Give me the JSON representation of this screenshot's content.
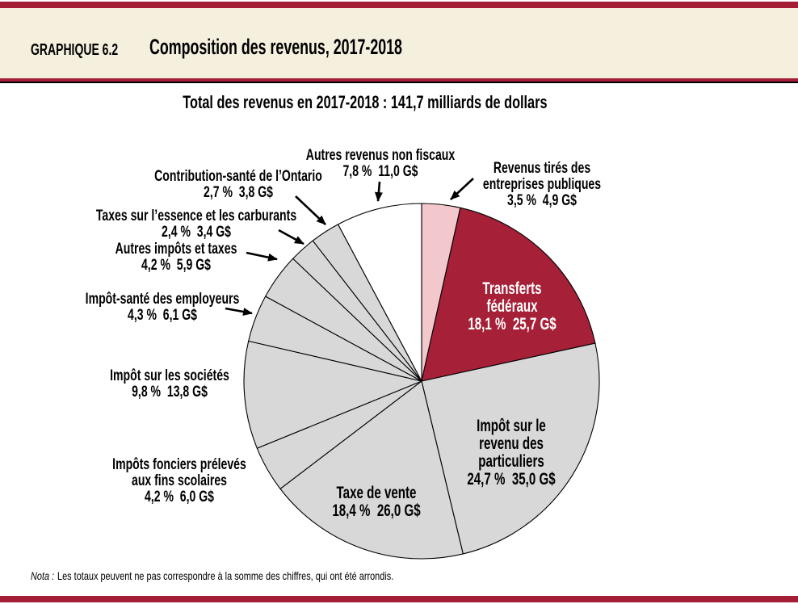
{
  "header": {
    "kicker": "GRAPHIQUE 6.2",
    "title": "Composition des revenus, 2017-2018"
  },
  "subtitle": "Total des revenus en 2017-2018 : 141,7 milliards de dollars",
  "note": {
    "prefix": "Nota :",
    "text": "Les totaux peuvent ne pas correspondre à la somme des chiffres, qui ont été arrondis."
  },
  "colors": {
    "accent_red": "#a41e36",
    "header_bg": "#f5efde",
    "slice_red": "#a62038",
    "slice_pink": "#f2c8cc",
    "slice_gray": "#d8d8d8",
    "slice_white": "#ffffff"
  },
  "chart_data": {
    "type": "pie",
    "title": "Composition des revenus, 2017-2018",
    "subtitle": "Total des revenus en 2017-2018 : 141,7 milliards de dollars",
    "total_value_gs": 141.7,
    "unit": "G$",
    "start_angle_deg": 0,
    "direction": "clockwise",
    "slices": [
      {
        "id": "entreprises",
        "label": "Revenus tirés des entreprises publiques",
        "label_lines": [
          "Revenus tirés des",
          "entreprises publiques"
        ],
        "pct": 3.5,
        "amount_gs": 4.9,
        "pct_label": "3,5 %",
        "amount_label": "4,9 G$",
        "value_line": "3,5 %  4,9 G$",
        "color_key": "slice_pink"
      },
      {
        "id": "transferts",
        "label": "Transferts fédéraux",
        "label_lines": [
          "Transferts",
          "fédéraux"
        ],
        "pct": 18.1,
        "amount_gs": 25.7,
        "pct_label": "18,1 %",
        "amount_label": "25,7 G$",
        "value_line": "18,1 %  25,7 G$",
        "color_key": "slice_red"
      },
      {
        "id": "impot-revenu",
        "label": "Impôt sur le revenu des particuliers",
        "label_lines": [
          "Impôt sur le",
          "revenu des",
          "particuliers"
        ],
        "pct": 24.7,
        "amount_gs": 35.0,
        "pct_label": "24,7 %",
        "amount_label": "35,0 G$",
        "value_line": "24,7 %  35,0 G$",
        "color_key": "slice_gray"
      },
      {
        "id": "taxe-vente",
        "label": "Taxe de vente",
        "label_lines": [
          "Taxe de vente"
        ],
        "pct": 18.4,
        "amount_gs": 26.0,
        "pct_label": "18,4 %",
        "amount_label": "26,0 G$",
        "value_line": "18,4 %  26,0 G$",
        "color_key": "slice_gray"
      },
      {
        "id": "impots-fonciers",
        "label": "Impôts fonciers prélevés aux fins scolaires",
        "label_lines": [
          "Impôts fonciers prélevés",
          "aux fins scolaires"
        ],
        "pct": 4.2,
        "amount_gs": 6.0,
        "pct_label": "4,2 %",
        "amount_label": "6,0 G$",
        "value_line": "4,2 %  6,0 G$",
        "color_key": "slice_gray"
      },
      {
        "id": "impot-societes",
        "label": "Impôt sur les sociétés",
        "label_lines": [
          "Impôt sur les sociétés"
        ],
        "pct": 9.8,
        "amount_gs": 13.8,
        "pct_label": "9,8 %",
        "amount_label": "13,8 G$",
        "value_line": "9,8 %  13,8 G$",
        "color_key": "slice_gray"
      },
      {
        "id": "impot-sante",
        "label": "Impôt-santé des employeurs",
        "label_lines": [
          "Impôt-santé des employeurs"
        ],
        "pct": 4.3,
        "amount_gs": 6.1,
        "pct_label": "4,3 %",
        "amount_label": "6,1 G$",
        "value_line": "4,3 %  6,1 G$",
        "color_key": "slice_gray"
      },
      {
        "id": "autres-impots",
        "label": "Autres impôts et taxes",
        "label_lines": [
          "Autres impôts et taxes"
        ],
        "pct": 4.2,
        "amount_gs": 5.9,
        "pct_label": "4,2 %",
        "amount_label": "5,9 G$",
        "value_line": "4,2 %  5,9 G$",
        "color_key": "slice_gray"
      },
      {
        "id": "taxes-essence",
        "label": "Taxes sur l’essence et les carburants",
        "label_lines": [
          "Taxes sur l’essence et les carburants"
        ],
        "pct": 2.4,
        "amount_gs": 3.4,
        "pct_label": "2,4 %",
        "amount_label": "3,4 G$",
        "value_line": "2,4 %  3,4 G$",
        "color_key": "slice_gray"
      },
      {
        "id": "contribution-sante",
        "label": "Contribution-santé de l’Ontario",
        "label_lines": [
          "Contribution-santé de l’Ontario"
        ],
        "pct": 2.7,
        "amount_gs": 3.8,
        "pct_label": "2,7 %",
        "amount_label": "3,8 G$",
        "value_line": "2,7 %  3,8 G$",
        "color_key": "slice_gray"
      },
      {
        "id": "autres-revenus",
        "label": "Autres revenus non fiscaux",
        "label_lines": [
          "Autres revenus non fiscaux"
        ],
        "pct": 7.8,
        "amount_gs": 11.0,
        "pct_label": "7,8 %",
        "amount_label": "11,0 G$",
        "value_line": "7,8 %  11,0 G$",
        "color_key": "slice_white"
      }
    ]
  }
}
